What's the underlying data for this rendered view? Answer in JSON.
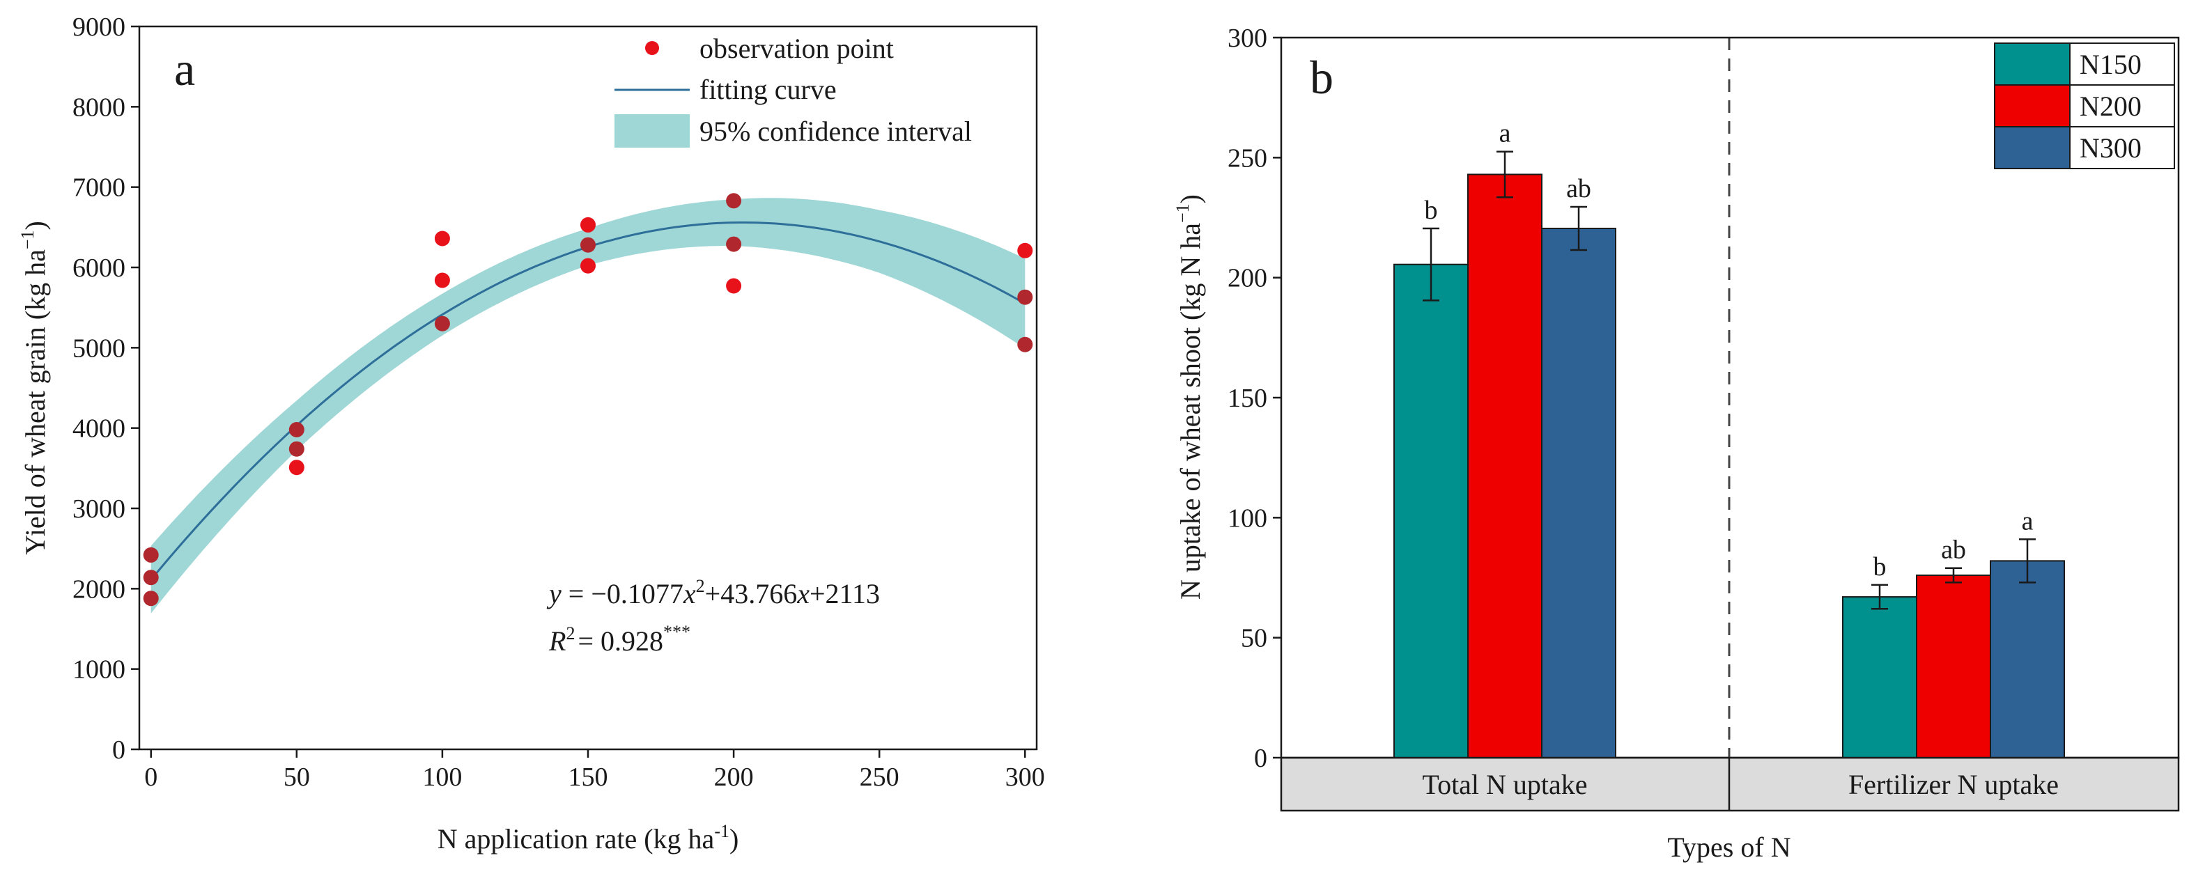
{
  "chart_data": [
    {
      "panel": "a",
      "type": "scatter",
      "xlabel": "N application rate (kg ha",
      "xlabel_sup": "-1",
      "xlabel_end": ")",
      "ylabel": "Yield of wheat grain (kg ha",
      "ylabel_sup": "−1",
      "ylabel_end": ")",
      "xlim": [
        -4,
        304
      ],
      "ylim": [
        0,
        9000
      ],
      "xticks": [
        0,
        50,
        100,
        150,
        200,
        250,
        300
      ],
      "yticks": [
        0,
        1000,
        2000,
        3000,
        4000,
        5000,
        6000,
        7000,
        8000,
        9000
      ],
      "points": [
        [
          0,
          2420
        ],
        [
          0,
          2140
        ],
        [
          0,
          1880
        ],
        [
          50,
          3980
        ],
        [
          50,
          3740
        ],
        [
          50,
          3510
        ],
        [
          100,
          6360
        ],
        [
          100,
          5840
        ],
        [
          100,
          5300
        ],
        [
          150,
          6530
        ],
        [
          150,
          6280
        ],
        [
          150,
          6020
        ],
        [
          200,
          6830
        ],
        [
          200,
          6290
        ],
        [
          200,
          5770
        ],
        [
          300,
          6210
        ],
        [
          300,
          5630
        ],
        [
          300,
          5040
        ]
      ],
      "fit": {
        "a": -0.1077,
        "b": 43.766,
        "c": 2113
      },
      "ci_halfwidth": [
        [
          0,
          420
        ],
        [
          50,
          310
        ],
        [
          100,
          260
        ],
        [
          150,
          230
        ],
        [
          200,
          290
        ],
        [
          250,
          390
        ],
        [
          300,
          560
        ]
      ],
      "legend": {
        "observation": "observation point",
        "fitting": "fitting curve",
        "ci": "95% confidence interval"
      },
      "equation": {
        "line1_y": "y",
        "line1_mid": " = −0.1077",
        "line1_x1": "x",
        "line1_sup": "2",
        "line1_rest": "+43.766",
        "line1_x2": "x",
        "line1_end": "+2113",
        "line2_r": "R",
        "line2_sup": "2",
        "line2_val": "= 0.928",
        "line2_stars": "***"
      },
      "colors": {
        "points": "#e8121b",
        "points_overlap": "#b0282e",
        "curve": "#2e6f9a",
        "ci": "#9fd6d6"
      }
    },
    {
      "panel": "b",
      "type": "bar",
      "xlabel": "Types of N",
      "ylabel": "N uptake of wheat shoot (kg N ha",
      "ylabel_sup": "−1",
      "ylabel_end": ")",
      "ylim": [
        0,
        300
      ],
      "yticks": [
        0,
        50,
        100,
        150,
        200,
        250,
        300
      ],
      "categories": [
        "Total N uptake",
        "Fertilizer N uptake"
      ],
      "series": [
        {
          "name": "N150",
          "color": "#00918f",
          "values": [
            205.5,
            67.0
          ],
          "errors": [
            15,
            5
          ],
          "letters": [
            "b",
            "b"
          ]
        },
        {
          "name": "N200",
          "color": "#ee0000",
          "values": [
            243.0,
            76.0
          ],
          "errors": [
            9.5,
            3
          ],
          "letters": [
            "a",
            "ab"
          ]
        },
        {
          "name": "N300",
          "color": "#2e6295",
          "values": [
            220.5,
            82.0
          ],
          "errors": [
            9,
            9
          ],
          "letters": [
            "ab",
            "a"
          ]
        }
      ]
    }
  ]
}
